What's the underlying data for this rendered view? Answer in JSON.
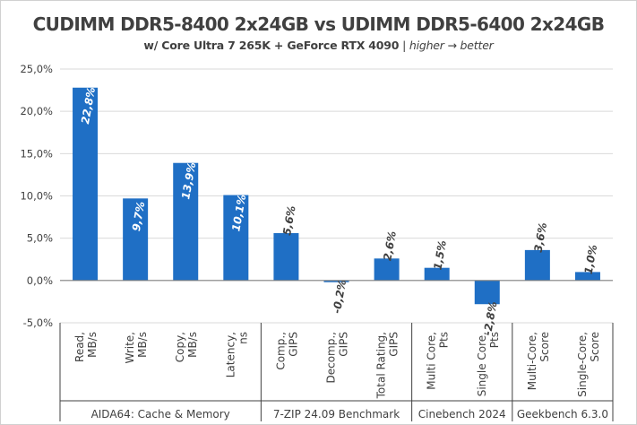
{
  "title": "CUDIMM DDR5-8400 2x24GB vs UDIMM DDR5-6400 2x24GB",
  "subtitle": {
    "main": "w/ Core Ultra 7 265K + GeForce RTX 4090",
    "separator": " | ",
    "note": "higher → better"
  },
  "colors": {
    "bar": "#1f6fc5",
    "grid": "#d9d9d9",
    "axis": "#404040",
    "text": "#404040"
  },
  "chart_data": {
    "type": "bar",
    "ylim": [
      -5,
      25
    ],
    "ytick_step": 5,
    "ytick_labels": [
      "-5,0%",
      "0,0%",
      "5,0%",
      "10,0%",
      "15,0%",
      "20,0%",
      "25,0%"
    ],
    "grid": "horizontal",
    "categories": [
      [
        "Read,",
        "MB/s"
      ],
      [
        "Write,",
        "MB/s"
      ],
      [
        "Copy,",
        "MB/s"
      ],
      [
        "Latency,",
        "ns"
      ],
      [
        "Comp.,",
        "GIPS"
      ],
      [
        "Decomp.,",
        "GIPS"
      ],
      [
        "Total Rating,",
        "GIPS"
      ],
      [
        "Multi Core,",
        "Pts"
      ],
      [
        "Single Core,",
        "Pts"
      ],
      [
        "Multi-Core,",
        "Score"
      ],
      [
        "Single-Core,",
        "Score"
      ]
    ],
    "values": [
      22.8,
      9.7,
      13.9,
      10.1,
      5.6,
      -0.2,
      2.6,
      1.5,
      -2.8,
      3.6,
      1.0
    ],
    "value_labels": [
      "22,8%",
      "9,7%",
      "13,9%",
      "10,1%",
      "5,6%",
      "-0,2%",
      "2,6%",
      "1,5%",
      "-2,8%",
      "3,6%",
      "1,0%"
    ],
    "groups": [
      {
        "name": "AIDA64: Cache & Memory",
        "count": 4
      },
      {
        "name": "7-ZIP 24.09 Benchmark",
        "count": 3
      },
      {
        "name": "Cinebench 2024",
        "count": 2
      },
      {
        "name": "Geekbench 6.3.0",
        "count": 2
      }
    ]
  }
}
